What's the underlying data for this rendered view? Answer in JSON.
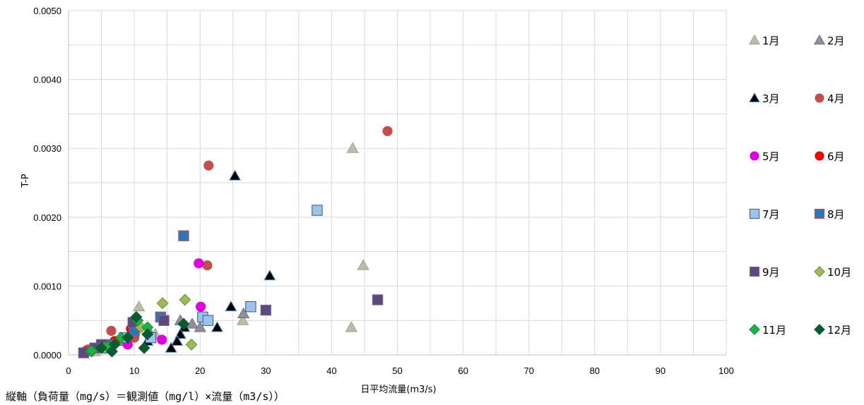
{
  "chart_data": {
    "type": "scatter",
    "title": "",
    "xlabel": "日平均流量(m3/s)",
    "ylabel": "T-P",
    "xlim": [
      0,
      100
    ],
    "ylim": [
      0,
      0.005
    ],
    "x_ticks": [
      "0",
      "10",
      "20",
      "30",
      "40",
      "50",
      "60",
      "70",
      "80",
      "90",
      "100"
    ],
    "y_ticks": [
      "0.0000",
      "0.0010",
      "0.0020",
      "0.0030",
      "0.0040",
      "0.0050"
    ],
    "grid": true,
    "legend_position": "right",
    "series": [
      {
        "name": "1月",
        "marker": "triangle",
        "color": "#b7bfa8",
        "stroke": "#9aa38c",
        "points": [
          [
            10.7,
            0.0007
          ],
          [
            43.2,
            0.003
          ],
          [
            44.8,
            0.0013
          ],
          [
            43.0,
            0.0004
          ],
          [
            26.5,
            0.0005
          ],
          [
            13.2,
            0.0003
          ],
          [
            9.0,
            0.0002
          ],
          [
            6.0,
            0.0001
          ],
          [
            4.0,
            5e-05
          ]
        ]
      },
      {
        "name": "2月",
        "marker": "triangle",
        "color": "#8f8e9c",
        "stroke": "#6f6e7c",
        "points": [
          [
            26.6,
            0.0006
          ],
          [
            18.8,
            0.00045
          ],
          [
            20.0,
            0.0004
          ],
          [
            17.0,
            0.0005
          ],
          [
            12.5,
            0.0003
          ],
          [
            8.0,
            0.0002
          ],
          [
            5.0,
            0.0001
          ],
          [
            3.0,
            5e-05
          ]
        ]
      },
      {
        "name": "3月",
        "marker": "triangle",
        "color": "#000000",
        "stroke": "#5b9bd5",
        "points": [
          [
            25.3,
            0.0026
          ],
          [
            30.6,
            0.00115
          ],
          [
            24.7,
            0.0007
          ],
          [
            22.6,
            0.0004
          ],
          [
            17.6,
            0.0004
          ],
          [
            17.0,
            0.0003
          ],
          [
            16.5,
            0.0002
          ],
          [
            15.6,
            0.0001
          ],
          [
            12.0,
            0.0002
          ]
        ]
      },
      {
        "name": "4月",
        "marker": "circle",
        "color": "#c0504d",
        "stroke": "#c0504d",
        "points": [
          [
            21.3,
            0.00275
          ],
          [
            48.5,
            0.00325
          ],
          [
            21.1,
            0.0013
          ],
          [
            6.5,
            0.00035
          ],
          [
            10.0,
            0.00025
          ],
          [
            5.0,
            0.00015
          ],
          [
            3.0,
            8e-05
          ]
        ]
      },
      {
        "name": "5月",
        "marker": "circle",
        "color": "#e000e0",
        "stroke": "#e000e0",
        "points": [
          [
            19.8,
            0.00133
          ],
          [
            20.1,
            0.0007
          ],
          [
            14.2,
            0.00022
          ],
          [
            9.0,
            0.00015
          ],
          [
            5.0,
            0.0001
          ]
        ]
      },
      {
        "name": "6月",
        "marker": "circle",
        "color": "#ff0000",
        "stroke": "#cc0000",
        "points": [
          [
            9.5,
            0.00038
          ],
          [
            7.0,
            0.0002
          ],
          [
            4.0,
            0.0001
          ],
          [
            2.5,
            5e-05
          ]
        ]
      },
      {
        "name": "7月",
        "marker": "square",
        "color": "#9dc3e6",
        "stroke": "#2f5597",
        "points": [
          [
            37.8,
            0.0021
          ],
          [
            27.7,
            0.0007
          ],
          [
            20.4,
            0.00055
          ],
          [
            21.2,
            0.0005
          ],
          [
            12.5,
            0.00025
          ],
          [
            8.5,
            0.00025
          ],
          [
            6.0,
            0.0001
          ]
        ]
      },
      {
        "name": "8月",
        "marker": "square",
        "color": "#2e75b6",
        "stroke": "#c0504d",
        "points": [
          [
            17.5,
            0.00173
          ],
          [
            14.0,
            0.00055
          ],
          [
            10.0,
            0.00035
          ],
          [
            6.0,
            0.00015
          ]
        ]
      },
      {
        "name": "9月",
        "marker": "square",
        "color": "#5c4a7d",
        "stroke": "#8064a2",
        "points": [
          [
            47.0,
            0.0008
          ],
          [
            30.0,
            0.00065
          ],
          [
            14.5,
            0.0005
          ],
          [
            9.8,
            0.00047
          ],
          [
            5.0,
            0.00015
          ],
          [
            4.0,
            0.0001
          ],
          [
            2.3,
            3e-05
          ]
        ]
      },
      {
        "name": "10月",
        "marker": "diamond",
        "color": "#9bbb59",
        "stroke": "#6e8c2f",
        "points": [
          [
            17.7,
            0.0008
          ],
          [
            14.3,
            0.00075
          ],
          [
            18.7,
            0.00015
          ],
          [
            11.0,
            0.0004
          ],
          [
            8.0,
            0.00025
          ],
          [
            5.5,
            0.0001
          ],
          [
            3.5,
            5e-05
          ]
        ]
      },
      {
        "name": "11月",
        "marker": "diamond",
        "color": "#1db342",
        "stroke": "#158a32",
        "points": [
          [
            10.5,
            0.0005
          ],
          [
            12.0,
            0.0004
          ],
          [
            8.0,
            0.00025
          ],
          [
            6.0,
            0.00012
          ],
          [
            3.5,
            6e-05
          ]
        ]
      },
      {
        "name": "12月",
        "marker": "diamond",
        "color": "#0b5a34",
        "stroke": "#0b5a34",
        "points": [
          [
            10.3,
            0.00055
          ],
          [
            17.5,
            0.00045
          ],
          [
            12.0,
            0.0003
          ],
          [
            9.0,
            0.00025
          ],
          [
            7.0,
            0.00015
          ],
          [
            5.0,
            0.0001
          ],
          [
            6.6,
            5e-05
          ],
          [
            11.5,
            0.0001
          ]
        ]
      }
    ]
  },
  "footnote": "縦軸（負荷量（mg/s）＝観測値（mg/l）×流量（m3/s））"
}
